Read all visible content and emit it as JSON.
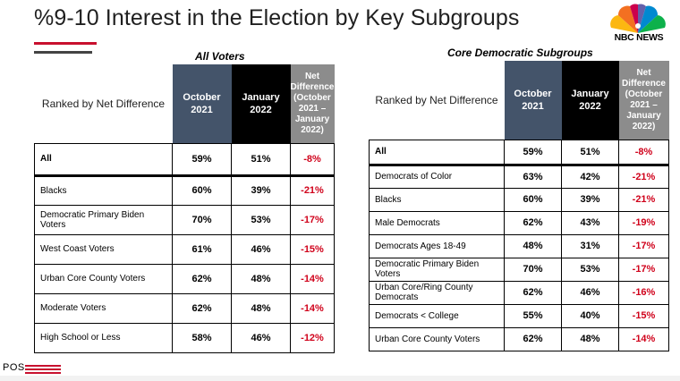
{
  "title": "%9-10 Interest in the Election by Key Subgroups",
  "logo": {
    "name": "NBC NEWS"
  },
  "footer": {
    "badge": "POS"
  },
  "colors": {
    "october": "#44546a",
    "january": "#000000",
    "net": "#8c8c8c",
    "negative": "#d0021b",
    "accent_red": "#c8102e"
  },
  "chart_data": [
    {
      "type": "table",
      "title": "All Voters",
      "corner_label": "Ranked by Net Difference",
      "columns": [
        "October 2021",
        "January 2022",
        "Net Difference (October 2021 – January 2022)"
      ],
      "rows": [
        {
          "label": "All",
          "oct": "59%",
          "jan": "51%",
          "net": "-8%"
        },
        {
          "label": "Blacks",
          "oct": "60%",
          "jan": "39%",
          "net": "-21%"
        },
        {
          "label": "Democratic Primary Biden Voters",
          "oct": "70%",
          "jan": "53%",
          "net": "-17%"
        },
        {
          "label": "West Coast Voters",
          "oct": "61%",
          "jan": "46%",
          "net": "-15%"
        },
        {
          "label": "Urban Core County Voters",
          "oct": "62%",
          "jan": "48%",
          "net": "-14%"
        },
        {
          "label": "Moderate Voters",
          "oct": "62%",
          "jan": "48%",
          "net": "-14%"
        },
        {
          "label": "High School or Less",
          "oct": "58%",
          "jan": "46%",
          "net": "-12%"
        }
      ]
    },
    {
      "type": "table",
      "title": "Core Democratic Subgroups",
      "corner_label": "Ranked by Net Difference",
      "columns": [
        "October 2021",
        "January 2022",
        "Net Difference (October 2021 – January 2022)"
      ],
      "rows": [
        {
          "label": "All",
          "oct": "59%",
          "jan": "51%",
          "net": "-8%"
        },
        {
          "label": "Democrats of Color",
          "oct": "63%",
          "jan": "42%",
          "net": "-21%"
        },
        {
          "label": "Blacks",
          "oct": "60%",
          "jan": "39%",
          "net": "-21%"
        },
        {
          "label": "Male Democrats",
          "oct": "62%",
          "jan": "43%",
          "net": "-19%"
        },
        {
          "label": "Democrats Ages 18-49",
          "oct": "48%",
          "jan": "31%",
          "net": "-17%"
        },
        {
          "label": "Democratic Primary Biden Voters",
          "oct": "70%",
          "jan": "53%",
          "net": "-17%"
        },
        {
          "label": "Urban Core/Ring County Democrats",
          "oct": "62%",
          "jan": "46%",
          "net": "-16%"
        },
        {
          "label": "Democrats < College",
          "oct": "55%",
          "jan": "40%",
          "net": "-15%"
        },
        {
          "label": "Urban Core County Voters",
          "oct": "62%",
          "jan": "48%",
          "net": "-14%"
        }
      ]
    }
  ]
}
